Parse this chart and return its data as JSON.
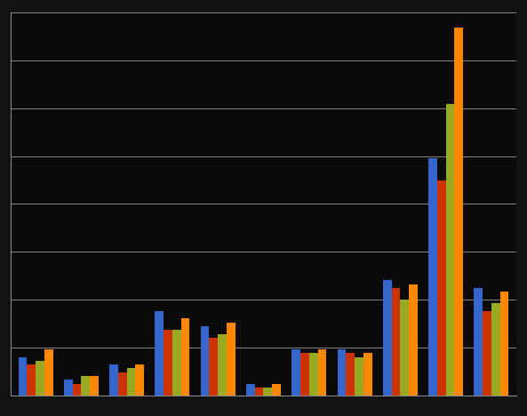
{
  "groups": 11,
  "series_colors": [
    "#3466CC",
    "#CC3300",
    "#99AA22",
    "#FF8800"
  ],
  "series_values": [
    [
      10,
      4,
      8,
      22,
      18,
      3,
      12,
      12,
      30,
      62,
      28
    ],
    [
      8,
      3,
      6,
      17,
      15,
      2,
      11,
      11,
      28,
      56,
      22
    ],
    [
      9,
      5,
      7,
      17,
      16,
      2,
      11,
      10,
      25,
      76,
      24
    ],
    [
      12,
      5,
      8,
      20,
      19,
      3,
      12,
      11,
      29,
      96,
      27
    ]
  ],
  "background_color": "#111111",
  "plot_bg_color": "#0a0a0a",
  "grid_color": "#888888",
  "ylim_max": 100,
  "bar_width": 0.19,
  "n_gridlines": 8,
  "figsize": [
    5.93,
    4.68
  ],
  "dpi": 100
}
